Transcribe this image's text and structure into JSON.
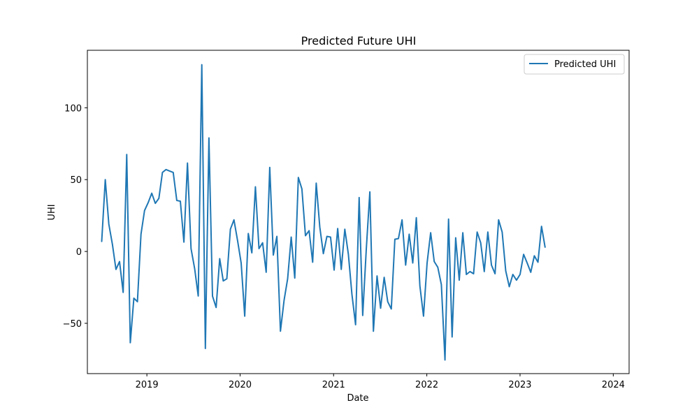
{
  "chart_data": {
    "type": "line",
    "title": "Predicted Future UHI",
    "xlabel": "Date",
    "ylabel": "UHI",
    "x_type": "date",
    "x_range": [
      "2018-05-13",
      "2024-03-03"
    ],
    "ylim": [
      -85,
      140
    ],
    "x_ticks": [
      {
        "date": "2019-01-01",
        "label": "2019"
      },
      {
        "date": "2020-01-01",
        "label": "2020"
      },
      {
        "date": "2021-01-01",
        "label": "2021"
      },
      {
        "date": "2022-01-01",
        "label": "2022"
      },
      {
        "date": "2023-01-01",
        "label": "2023"
      },
      {
        "date": "2024-01-01",
        "label": "2024"
      }
    ],
    "y_ticks": [
      {
        "value": -50,
        "label": "−50"
      },
      {
        "value": 0,
        "label": "0"
      },
      {
        "value": 50,
        "label": "50"
      },
      {
        "value": 100,
        "label": "100"
      }
    ],
    "grid": false,
    "legend": {
      "position": "top-right",
      "entries": [
        "Predicted UHI"
      ]
    },
    "series": [
      {
        "name": "Predicted UHI",
        "color": "#1f77b4",
        "points": [
          [
            "2018-07-08",
            7
          ],
          [
            "2018-07-22",
            50
          ],
          [
            "2018-08-05",
            19
          ],
          [
            "2018-08-19",
            5
          ],
          [
            "2018-09-02",
            -12.5
          ],
          [
            "2018-09-16",
            -7
          ],
          [
            "2018-09-30",
            -28.5
          ],
          [
            "2018-10-14",
            67.5
          ],
          [
            "2018-10-28",
            -63.5
          ],
          [
            "2018-11-11",
            -32.5
          ],
          [
            "2018-11-25",
            -35
          ],
          [
            "2018-12-09",
            12
          ],
          [
            "2018-12-23",
            28.5
          ],
          [
            "2019-01-06",
            34
          ],
          [
            "2019-01-20",
            40.5
          ],
          [
            "2019-02-03",
            33.5
          ],
          [
            "2019-02-17",
            37
          ],
          [
            "2019-03-03",
            55
          ],
          [
            "2019-03-17",
            57
          ],
          [
            "2019-03-31",
            56
          ],
          [
            "2019-04-14",
            55
          ],
          [
            "2019-04-28",
            35.5
          ],
          [
            "2019-05-12",
            35
          ],
          [
            "2019-05-26",
            6.5
          ],
          [
            "2019-06-09",
            61.5
          ],
          [
            "2019-06-23",
            2
          ],
          [
            "2019-07-07",
            -12
          ],
          [
            "2019-07-21",
            -31
          ],
          [
            "2019-08-04",
            130
          ],
          [
            "2019-08-18",
            -67.5
          ],
          [
            "2019-09-01",
            79
          ],
          [
            "2019-09-15",
            -31
          ],
          [
            "2019-09-29",
            -39
          ],
          [
            "2019-10-13",
            -5
          ],
          [
            "2019-10-27",
            -20.5
          ],
          [
            "2019-11-10",
            -19
          ],
          [
            "2019-11-24",
            15.5
          ],
          [
            "2019-12-08",
            22
          ],
          [
            "2019-12-22",
            7.5
          ],
          [
            "2020-01-05",
            -8
          ],
          [
            "2020-01-19",
            -45
          ],
          [
            "2020-02-02",
            12.5
          ],
          [
            "2020-02-16",
            -1
          ],
          [
            "2020-03-01",
            45
          ],
          [
            "2020-03-15",
            2
          ],
          [
            "2020-03-29",
            6
          ],
          [
            "2020-04-12",
            -14.5
          ],
          [
            "2020-04-26",
            58.5
          ],
          [
            "2020-05-10",
            -2.5
          ],
          [
            "2020-05-24",
            10.5
          ],
          [
            "2020-06-07",
            -55.5
          ],
          [
            "2020-06-21",
            -34
          ],
          [
            "2020-07-05",
            -19
          ],
          [
            "2020-07-19",
            10
          ],
          [
            "2020-08-02",
            -18.5
          ],
          [
            "2020-08-16",
            51.5
          ],
          [
            "2020-08-30",
            43.5
          ],
          [
            "2020-09-13",
            11
          ],
          [
            "2020-09-27",
            14.5
          ],
          [
            "2020-10-11",
            -7.5
          ],
          [
            "2020-10-25",
            47.5
          ],
          [
            "2020-11-08",
            17
          ],
          [
            "2020-11-22",
            -1.5
          ],
          [
            "2020-12-06",
            10.5
          ],
          [
            "2020-12-20",
            10
          ],
          [
            "2021-01-03",
            -13
          ],
          [
            "2021-01-17",
            16
          ],
          [
            "2021-01-31",
            -12.5
          ],
          [
            "2021-02-14",
            15.5
          ],
          [
            "2021-02-28",
            -2
          ],
          [
            "2021-03-14",
            -30
          ],
          [
            "2021-03-28",
            -51
          ],
          [
            "2021-04-11",
            37.5
          ],
          [
            "2021-04-25",
            -44.5
          ],
          [
            "2021-05-09",
            1.5
          ],
          [
            "2021-05-23",
            41.5
          ],
          [
            "2021-06-06",
            -55.5
          ],
          [
            "2021-06-20",
            -17
          ],
          [
            "2021-07-04",
            -39.5
          ],
          [
            "2021-07-18",
            -18
          ],
          [
            "2021-08-01",
            -35
          ],
          [
            "2021-08-15",
            -40
          ],
          [
            "2021-08-29",
            8.5
          ],
          [
            "2021-09-12",
            9
          ],
          [
            "2021-09-26",
            22
          ],
          [
            "2021-10-10",
            -9.5
          ],
          [
            "2021-10-24",
            12
          ],
          [
            "2021-11-07",
            -8
          ],
          [
            "2021-11-21",
            23.5
          ],
          [
            "2021-12-05",
            -24
          ],
          [
            "2021-12-19",
            -45
          ],
          [
            "2022-01-02",
            -8
          ],
          [
            "2022-01-16",
            13
          ],
          [
            "2022-01-30",
            -7
          ],
          [
            "2022-02-13",
            -11
          ],
          [
            "2022-02-27",
            -23
          ],
          [
            "2022-03-13",
            -75.5
          ],
          [
            "2022-03-27",
            22.5
          ],
          [
            "2022-04-10",
            -59.5
          ],
          [
            "2022-04-24",
            9.5
          ],
          [
            "2022-05-08",
            -20
          ],
          [
            "2022-05-22",
            13
          ],
          [
            "2022-06-05",
            -16
          ],
          [
            "2022-06-19",
            -14
          ],
          [
            "2022-07-03",
            -15.5
          ],
          [
            "2022-07-17",
            13.5
          ],
          [
            "2022-07-31",
            6
          ],
          [
            "2022-08-14",
            -14
          ],
          [
            "2022-08-28",
            13.5
          ],
          [
            "2022-09-11",
            -9.5
          ],
          [
            "2022-09-25",
            -15.5
          ],
          [
            "2022-10-09",
            22
          ],
          [
            "2022-10-23",
            13.5
          ],
          [
            "2022-11-06",
            -13.5
          ],
          [
            "2022-11-20",
            -24.5
          ],
          [
            "2022-12-04",
            -16
          ],
          [
            "2022-12-18",
            -20
          ],
          [
            "2023-01-01",
            -16
          ],
          [
            "2023-01-15",
            -2
          ],
          [
            "2023-01-29",
            -8
          ],
          [
            "2023-02-12",
            -14.5
          ],
          [
            "2023-02-26",
            -3
          ],
          [
            "2023-03-12",
            -7.5
          ],
          [
            "2023-03-26",
            17.5
          ],
          [
            "2023-04-09",
            3
          ]
        ]
      }
    ]
  }
}
